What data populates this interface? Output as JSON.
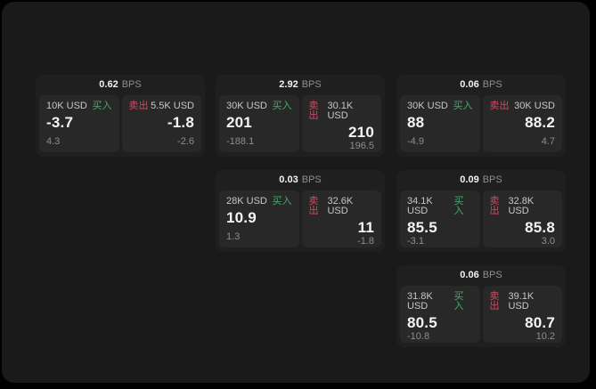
{
  "labels": {
    "buy": "买入",
    "sell": "卖出",
    "bps_unit": "BPS"
  },
  "colors": {
    "buy_accent": "#3fae68",
    "sell_accent": "#d04a62",
    "board_bg": "#1a1a1a",
    "card_bg": "#1f1f1f",
    "panel_bg": "#282828"
  },
  "cards": [
    {
      "row": 0,
      "col": 0,
      "bps": "0.62",
      "buy": {
        "size": "10K USD",
        "value": "-3.7",
        "sub": "4.3"
      },
      "sell": {
        "size": "5.5K USD",
        "value": "-1.8",
        "sub": "-2.6"
      }
    },
    {
      "row": 0,
      "col": 1,
      "bps": "2.92",
      "buy": {
        "size": "30K USD",
        "value": "201",
        "sub": "-188.1"
      },
      "sell": {
        "size": "30.1K USD",
        "value": "210",
        "sub": "196.5"
      }
    },
    {
      "row": 0,
      "col": 2,
      "bps": "0.06",
      "buy": {
        "size": "30K USD",
        "value": "88",
        "sub": "-4.9"
      },
      "sell": {
        "size": "30K USD",
        "value": "88.2",
        "sub": "4.7"
      }
    },
    {
      "row": 1,
      "col": 1,
      "bps": "0.03",
      "buy": {
        "size": "28K USD",
        "value": "10.9",
        "sub": "1.3"
      },
      "sell": {
        "size": "32.6K USD",
        "value": "11",
        "sub": "-1.8"
      }
    },
    {
      "row": 1,
      "col": 2,
      "bps": "0.09",
      "buy": {
        "size": "34.1K USD",
        "value": "85.5",
        "sub": "-3.1"
      },
      "sell": {
        "size": "32.8K USD",
        "value": "85.8",
        "sub": "3.0"
      }
    },
    {
      "row": 2,
      "col": 2,
      "bps": "0.06",
      "buy": {
        "size": "31.8K USD",
        "value": "80.5",
        "sub": "-10.8"
      },
      "sell": {
        "size": "39.1K USD",
        "value": "80.7",
        "sub": "10.2"
      }
    }
  ]
}
